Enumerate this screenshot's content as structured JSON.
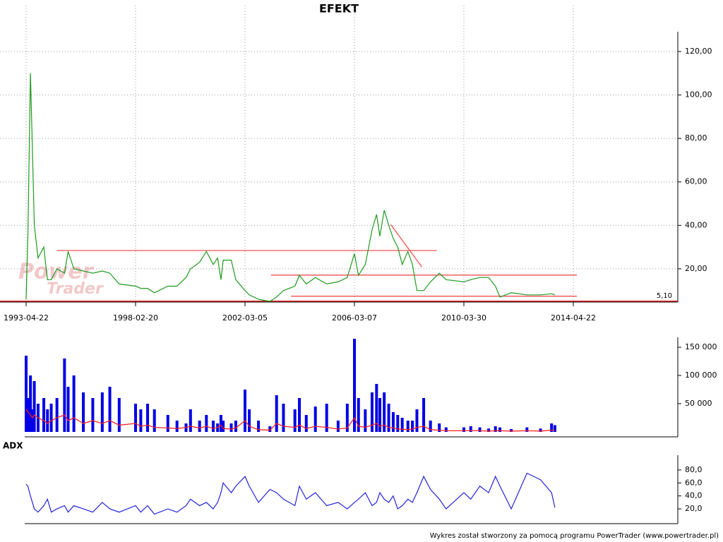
{
  "footer": "Wykres został stworzony za pomocą programu PowerTrader (www.powertrader.pl)",
  "chart_data": [
    {
      "type": "line",
      "title": "EFEKT",
      "watermark": [
        "Power",
        "Trader"
      ],
      "x": [
        "1993-04-22",
        "1993-05-20",
        "1993-07-01",
        "1993-08-01",
        "1993-09-01",
        "1993-11-01",
        "1994-02-01",
        "1994-04-01",
        "1994-06-01",
        "1994-09-01",
        "1995-01-01",
        "1995-03-01",
        "1995-06-01",
        "1995-11-01",
        "1996-04-01",
        "1996-09-01",
        "1997-01-01",
        "1997-06-01",
        "1998-02-20",
        "1998-05-01",
        "1998-08-01",
        "1998-11-01",
        "1999-05-01",
        "1999-09-01",
        "2000-01-01",
        "2000-03-01",
        "2000-07-01",
        "2000-10-01",
        "2001-01-01",
        "2001-03-01",
        "2001-04-15",
        "2001-05-15",
        "2001-09-01",
        "2001-11-01",
        "2002-03-05",
        "2002-05-01",
        "2002-09-01",
        "2003-02-01",
        "2003-05-01",
        "2003-08-01",
        "2004-01-01",
        "2004-03-01",
        "2004-06-01",
        "2004-10-01",
        "2005-03-01",
        "2005-08-01",
        "2005-12-01",
        "2006-03-07",
        "2006-05-01",
        "2006-08-01",
        "2006-11-01",
        "2007-01-01",
        "2007-02-15",
        "2007-04-15",
        "2007-06-15",
        "2007-08-15",
        "2007-10-15",
        "2007-12-15",
        "2008-03-01",
        "2008-05-01",
        "2008-07-01",
        "2008-10-01",
        "2009-01-01",
        "2009-05-01",
        "2009-08-01",
        "2010-03-30",
        "2010-07-01",
        "2010-11-01",
        "2011-03-01",
        "2011-06-01",
        "2011-08-01",
        "2012-01-01",
        "2012-08-01",
        "2013-02-01",
        "2013-07-01",
        "2013-08-15"
      ],
      "series": [
        {
          "color": "#1f9a1f",
          "values": [
            6,
            35,
            110,
            75,
            40,
            25,
            30,
            15,
            15,
            20,
            18,
            28,
            20,
            19,
            18,
            19,
            18,
            13,
            12,
            11,
            11,
            9,
            12,
            12,
            16,
            20,
            23,
            28,
            22,
            25,
            15,
            24,
            24,
            15,
            10,
            8,
            6,
            5,
            7,
            10,
            12,
            17,
            13,
            16,
            13,
            14,
            16,
            27,
            17,
            22,
            38,
            45,
            35,
            47,
            40,
            34,
            30,
            22,
            28,
            22,
            10,
            10,
            14,
            18,
            15,
            14,
            15,
            16,
            16,
            12,
            7,
            9,
            8,
            8,
            8.5,
            8
          ]
        }
      ],
      "xlim": [
        "1992-02-23",
        "2018-03-06"
      ],
      "xticks": [
        "1993-04-22",
        "1998-02-20",
        "2002-03-05",
        "2006-03-07",
        "2010-03-30",
        "2014-04-22"
      ],
      "ylim": [
        4.7,
        129.1
      ],
      "yticks": [
        {
          "value": 20,
          "label": "20,00"
        },
        {
          "value": 40,
          "label": "40,00"
        },
        {
          "value": 60,
          "label": "60,00"
        },
        {
          "value": 80,
          "label": "80,00"
        },
        {
          "value": 100,
          "label": "100,00"
        },
        {
          "value": 120,
          "label": "120,00"
        }
      ],
      "grid": true,
      "lines": [
        {
          "color": "#f05050",
          "x": [
            "1994-09-01",
            "2009-03-25"
          ],
          "y": [
            28.4,
            28.4
          ]
        },
        {
          "color": "#f05050",
          "x": [
            "2003-02-15",
            "2014-06-10"
          ],
          "y": [
            17.1,
            17.1
          ]
        },
        {
          "color": "#f05050",
          "x": [
            "2003-11-10",
            "2014-06-10"
          ],
          "y": [
            7.4,
            7.4
          ]
        },
        {
          "color": "#f05050",
          "x": [
            "2007-07-12",
            "2008-09-05"
          ],
          "y": [
            40.4,
            20.9
          ]
        }
      ],
      "last_price": {
        "value": 5.1,
        "label": "5,10",
        "color": "#e00000"
      }
    },
    {
      "type": "bar",
      "x": [
        "1993-04-22",
        "1993-05-20",
        "1993-07-01",
        "1993-08-01",
        "1993-09-01",
        "1993-11-01",
        "1994-02-01",
        "1994-04-01",
        "1994-06-01",
        "1994-09-01",
        "1995-01-01",
        "1995-03-01",
        "1995-06-01",
        "1995-11-01",
        "1996-04-01",
        "1996-09-01",
        "1997-01-01",
        "1997-06-01",
        "1998-02-20",
        "1998-05-01",
        "1998-08-01",
        "1998-11-01",
        "1999-05-01",
        "1999-09-01",
        "2000-01-01",
        "2000-03-01",
        "2000-07-01",
        "2000-10-01",
        "2001-01-01",
        "2001-03-01",
        "2001-04-15",
        "2001-05-15",
        "2001-09-01",
        "2001-11-01",
        "2002-03-05",
        "2002-05-01",
        "2002-09-01",
        "2003-02-01",
        "2003-05-01",
        "2003-08-01",
        "2004-01-01",
        "2004-03-01",
        "2004-06-01",
        "2004-10-01",
        "2005-03-01",
        "2005-08-01",
        "2005-12-01",
        "2006-03-07",
        "2006-05-01",
        "2006-08-01",
        "2006-11-01",
        "2007-01-01",
        "2007-02-15",
        "2007-04-15",
        "2007-06-15",
        "2007-08-15",
        "2007-10-15",
        "2007-12-15",
        "2008-03-01",
        "2008-05-01",
        "2008-07-01",
        "2008-10-01",
        "2009-01-01",
        "2009-05-01",
        "2009-08-01",
        "2010-03-30",
        "2010-07-01",
        "2010-11-01",
        "2011-03-01",
        "2011-06-01",
        "2011-08-01",
        "2012-01-01",
        "2012-08-01",
        "2013-02-01",
        "2013-07-01",
        "2013-08-15"
      ],
      "series": [
        {
          "type": "bar",
          "color": "#0000e6",
          "values": [
            135000,
            60000,
            100000,
            40000,
            90000,
            50000,
            60000,
            40000,
            50000,
            60000,
            130000,
            80000,
            100000,
            70000,
            60000,
            70000,
            80000,
            60000,
            50000,
            40000,
            50000,
            40000,
            30000,
            20000,
            15000,
            40000,
            20000,
            30000,
            20000,
            15000,
            30000,
            20000,
            15000,
            20000,
            75000,
            40000,
            20000,
            10000,
            65000,
            50000,
            40000,
            60000,
            30000,
            45000,
            50000,
            20000,
            50000,
            165000,
            60000,
            40000,
            70000,
            85000,
            60000,
            70000,
            50000,
            35000,
            30000,
            25000,
            20000,
            20000,
            40000,
            60000,
            20000,
            15000,
            8000,
            8000,
            10000,
            8000,
            6000,
            10000,
            8000,
            5000,
            8000,
            6000,
            15000,
            12000
          ]
        },
        {
          "type": "line",
          "color": "#ff2020",
          "values": [
            40000,
            35000,
            30000,
            25000,
            30000,
            25000,
            20000,
            15000,
            20000,
            25000,
            30000,
            20000,
            25000,
            15000,
            20000,
            15000,
            20000,
            12000,
            15000,
            10000,
            12000,
            8000,
            7000,
            6000,
            8000,
            10000,
            7000,
            10000,
            6000,
            8000,
            12000,
            6000,
            5000,
            7000,
            20000,
            10000,
            4000,
            3000,
            15000,
            10000,
            8000,
            12000,
            6000,
            10000,
            8000,
            5000,
            7000,
            25000,
            10000,
            8000,
            12000,
            15000,
            10000,
            12000,
            8000,
            7000,
            5000,
            5000,
            4000,
            5000,
            8000,
            10000,
            4000,
            3000,
            2000,
            2000,
            2500,
            2000,
            1500,
            2000,
            2000,
            1500,
            2000,
            1500,
            3000,
            3000
          ]
        }
      ],
      "ylim": [
        0,
        167500
      ],
      "yticks": [
        {
          "value": 50000,
          "label": "50 000"
        },
        {
          "value": 100000,
          "label": "100 000"
        },
        {
          "value": 150000,
          "label": "150 000"
        }
      ]
    },
    {
      "type": "line",
      "title": "ADX",
      "x": [
        "1993-04-22",
        "1993-05-20",
        "1993-07-01",
        "1993-08-01",
        "1993-09-01",
        "1993-11-01",
        "1994-02-01",
        "1994-04-01",
        "1994-06-01",
        "1994-09-01",
        "1995-01-01",
        "1995-03-01",
        "1995-06-01",
        "1995-11-01",
        "1996-04-01",
        "1996-09-01",
        "1997-01-01",
        "1997-06-01",
        "1998-02-20",
        "1998-05-01",
        "1998-08-01",
        "1998-11-01",
        "1999-05-01",
        "1999-09-01",
        "2000-01-01",
        "2000-03-01",
        "2000-07-01",
        "2000-10-01",
        "2001-01-01",
        "2001-03-01",
        "2001-04-15",
        "2001-05-15",
        "2001-09-01",
        "2001-11-01",
        "2002-03-05",
        "2002-05-01",
        "2002-09-01",
        "2003-02-01",
        "2003-05-01",
        "2003-08-01",
        "2004-01-01",
        "2004-03-01",
        "2004-06-01",
        "2004-10-01",
        "2005-03-01",
        "2005-08-01",
        "2005-12-01",
        "2006-03-07",
        "2006-05-01",
        "2006-08-01",
        "2006-11-01",
        "2007-01-01",
        "2007-02-15",
        "2007-04-15",
        "2007-06-15",
        "2007-08-15",
        "2007-10-15",
        "2007-12-15",
        "2008-03-01",
        "2008-05-01",
        "2008-07-01",
        "2008-10-01",
        "2009-01-01",
        "2009-05-01",
        "2009-08-01",
        "2010-03-30",
        "2010-07-01",
        "2010-11-01",
        "2011-03-01",
        "2011-06-01",
        "2011-08-01",
        "2012-01-01",
        "2012-08-01",
        "2013-02-01",
        "2013-07-01",
        "2013-08-15"
      ],
      "series": [
        {
          "color": "#2222dd",
          "values": [
            58,
            55,
            40,
            30,
            20,
            15,
            25,
            35,
            15,
            20,
            25,
            15,
            25,
            20,
            15,
            30,
            20,
            15,
            25,
            15,
            25,
            12,
            20,
            15,
            25,
            35,
            25,
            30,
            20,
            30,
            45,
            60,
            45,
            55,
            70,
            55,
            30,
            50,
            45,
            35,
            25,
            55,
            35,
            45,
            25,
            30,
            20,
            30,
            35,
            45,
            25,
            30,
            45,
            35,
            30,
            40,
            20,
            25,
            35,
            30,
            45,
            70,
            50,
            35,
            20,
            45,
            35,
            55,
            45,
            70,
            55,
            20,
            75,
            65,
            45,
            22
          ]
        }
      ],
      "ylim": [
        -2.7,
        102.7
      ],
      "yticks": [
        {
          "value": 20,
          "label": "20,0"
        },
        {
          "value": 40,
          "label": "40,0"
        },
        {
          "value": 60,
          "label": "60,0"
        },
        {
          "value": 80,
          "label": "80,0"
        }
      ]
    }
  ]
}
